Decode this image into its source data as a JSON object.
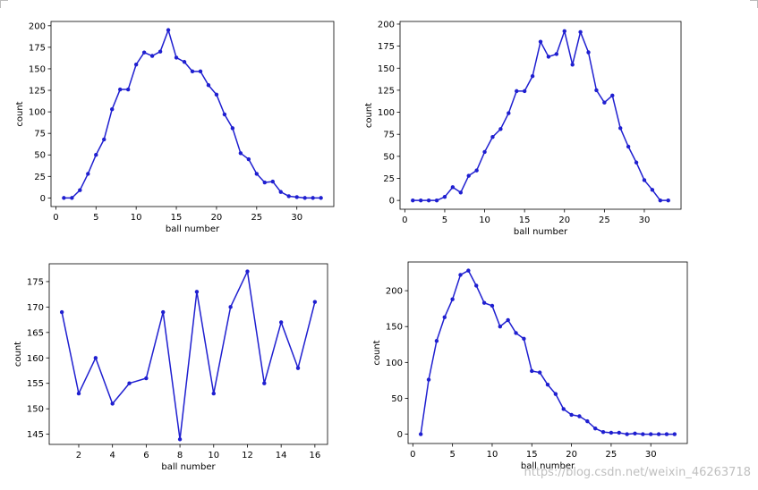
{
  "colors": {
    "line": "#1f1fd0",
    "axes": "#000000"
  },
  "watermark": "https://blog.csdn.net/weixin_46263718",
  "chart_data": [
    {
      "type": "line",
      "xlabel": "ball number",
      "ylabel": "count",
      "xlim": [
        -0.6,
        34.6
      ],
      "ylim": [
        -10,
        205
      ],
      "xticks": [
        0,
        5,
        10,
        15,
        20,
        25,
        30
      ],
      "yticks": [
        0,
        25,
        50,
        75,
        100,
        125,
        150,
        175,
        200
      ],
      "x": [
        1,
        2,
        3,
        4,
        5,
        6,
        7,
        8,
        9,
        10,
        11,
        12,
        13,
        14,
        15,
        16,
        17,
        18,
        19,
        20,
        21,
        22,
        23,
        24,
        25,
        26,
        27,
        28,
        29,
        30,
        31,
        32,
        33
      ],
      "series": [
        {
          "values": [
            0,
            0,
            9,
            28,
            50,
            68,
            103,
            126,
            126,
            155,
            169,
            165,
            170,
            195,
            163,
            158,
            147,
            147,
            131,
            120,
            97,
            81,
            52,
            45,
            28,
            18,
            19,
            7,
            2,
            1,
            0,
            0,
            0
          ]
        }
      ]
    },
    {
      "type": "line",
      "xlabel": "ball number",
      "ylabel": "count",
      "xlim": [
        -0.6,
        34.6
      ],
      "ylim": [
        -10,
        203
      ],
      "xticks": [
        0,
        5,
        10,
        15,
        20,
        25,
        30
      ],
      "yticks": [
        0,
        25,
        50,
        75,
        100,
        125,
        150,
        175,
        200
      ],
      "x": [
        1,
        2,
        3,
        4,
        5,
        6,
        7,
        8,
        9,
        10,
        11,
        12,
        13,
        14,
        15,
        16,
        17,
        18,
        19,
        20,
        21,
        22,
        23,
        24,
        25,
        26,
        27,
        28,
        29,
        30,
        31,
        32,
        33
      ],
      "series": [
        {
          "values": [
            0,
            0,
            0,
            0,
            4,
            15,
            9,
            28,
            34,
            55,
            72,
            81,
            99,
            124,
            124,
            141,
            180,
            163,
            166,
            192,
            154,
            191,
            168,
            125,
            111,
            119,
            82,
            61,
            43,
            23,
            12,
            0,
            0
          ]
        }
      ]
    },
    {
      "type": "line",
      "xlabel": "ball number",
      "ylabel": "count",
      "xlim": [
        0.25,
        16.75
      ],
      "ylim": [
        143,
        178.5
      ],
      "xticks": [
        2,
        4,
        6,
        8,
        10,
        12,
        14,
        16
      ],
      "yticks": [
        145,
        150,
        155,
        160,
        165,
        170,
        175
      ],
      "x": [
        1,
        2,
        3,
        4,
        5,
        6,
        7,
        8,
        9,
        10,
        11,
        12,
        13,
        14,
        15,
        16
      ],
      "series": [
        {
          "values": [
            169,
            153,
            160,
            151,
            155,
            156,
            169,
            144,
            173,
            153,
            170,
            177,
            155,
            167,
            158,
            171
          ]
        }
      ]
    },
    {
      "type": "line",
      "xlabel": "ball number",
      "ylabel": "count",
      "xlim": [
        -0.6,
        34.6
      ],
      "ylim": [
        -13,
        240
      ],
      "xticks": [
        0,
        5,
        10,
        15,
        20,
        25,
        30
      ],
      "yticks": [
        0,
        50,
        100,
        150,
        200
      ],
      "x": [
        1,
        2,
        3,
        4,
        5,
        6,
        7,
        8,
        9,
        10,
        11,
        12,
        13,
        14,
        15,
        16,
        17,
        18,
        19,
        20,
        21,
        22,
        23,
        24,
        25,
        26,
        27,
        28,
        29,
        30,
        31,
        32,
        33
      ],
      "series": [
        {
          "values": [
            0,
            76,
            130,
            163,
            188,
            222,
            228,
            207,
            183,
            179,
            150,
            159,
            141,
            133,
            88,
            86,
            69,
            56,
            35,
            27,
            25,
            18,
            8,
            3,
            2,
            2,
            0,
            1,
            0,
            0,
            0,
            0,
            0
          ]
        }
      ]
    }
  ]
}
